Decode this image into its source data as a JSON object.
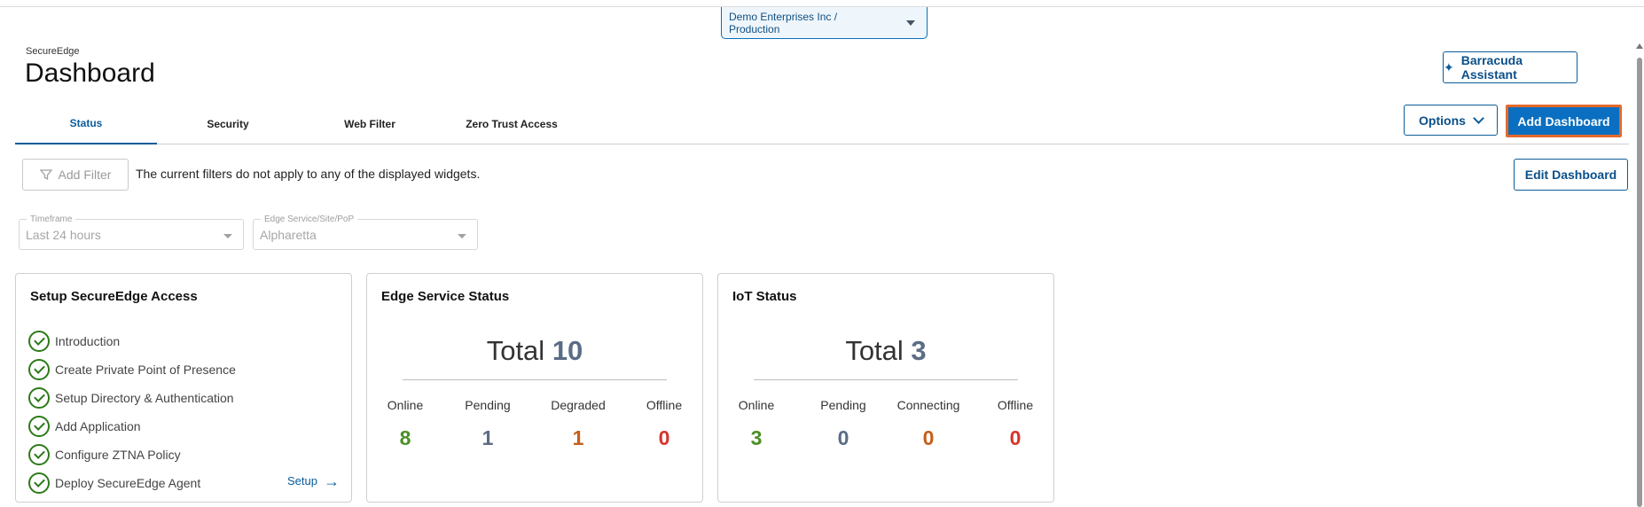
{
  "tenant": "Demo Enterprises Inc / Production",
  "header": {
    "app_name": "SecureEdge",
    "title": "Dashboard",
    "assistant_label": "Barracuda Assistant"
  },
  "tabs": [
    {
      "label": "Status"
    },
    {
      "label": "Security"
    },
    {
      "label": "Web Filter"
    },
    {
      "label": "Zero Trust Access"
    }
  ],
  "toolbar": {
    "options_label": "Options",
    "add_dashboard_label": "Add Dashboard",
    "add_filter_label": "Add Filter",
    "filter_note": "The current filters do not apply to any of the displayed widgets.",
    "edit_dashboard_label": "Edit Dashboard"
  },
  "filters": {
    "timeframe": {
      "label": "Timeframe",
      "value": "Last 24 hours"
    },
    "edge_service": {
      "label": "Edge Service/Site/PoP",
      "value": "Alpharetta"
    }
  },
  "setup_card": {
    "title": "Setup SecureEdge Access",
    "steps": [
      "Introduction",
      "Create Private Point of Presence",
      "Setup Directory & Authentication",
      "Add Application",
      "Configure ZTNA Policy",
      "Deploy SecureEdge Agent"
    ],
    "setup_link": "Setup"
  },
  "edge_card": {
    "title": "Edge Service Status",
    "total_label": "Total",
    "total": "10",
    "metrics": [
      {
        "name": "Online",
        "value": "8"
      },
      {
        "name": "Pending",
        "value": "1"
      },
      {
        "name": "Degraded",
        "value": "1"
      },
      {
        "name": "Offline",
        "value": "0"
      }
    ]
  },
  "iot_card": {
    "title": "IoT Status",
    "total_label": "Total",
    "total": "3",
    "metrics": [
      {
        "name": "Online",
        "value": "3"
      },
      {
        "name": "Pending",
        "value": "0"
      },
      {
        "name": "Connecting",
        "value": "0"
      },
      {
        "name": "Offline",
        "value": "0"
      }
    ]
  },
  "colors": {
    "accent": "#0a5c9b",
    "primary_button": "#0a6fc0",
    "focus_outline": "#e4692b",
    "online": "#4b8f26",
    "pending": "#5a6d84",
    "degraded": "#c55f1a",
    "offline": "#d7342c"
  }
}
